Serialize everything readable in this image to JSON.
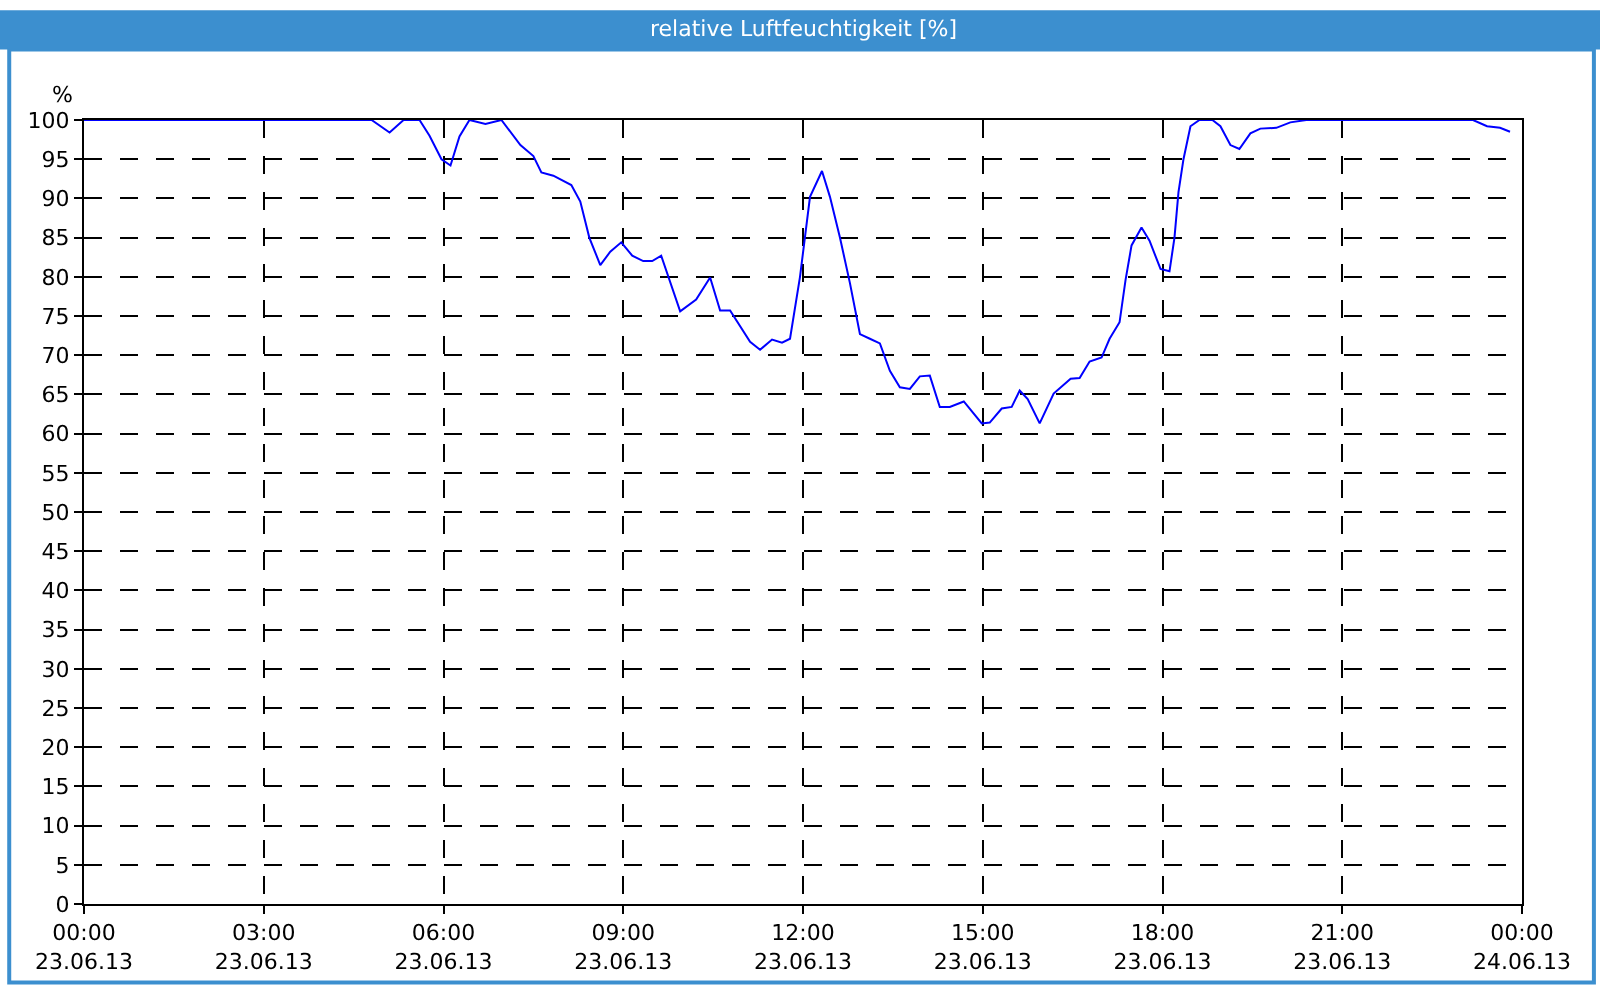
{
  "chart_data": {
    "type": "line",
    "title": "relative Luftfeuchtigkeit [%]",
    "ylabel": "%",
    "x": [
      "--06-23T00:00",
      "--06-23T04:48",
      "--06-23T05:06",
      "--06-23T05:20",
      "--06-23T05:36",
      "--06-23T05:46",
      "--06-23T05:58",
      "--06-23T06:07",
      "--06-23T06:16",
      "--06-23T06:26",
      "--06-23T06:42",
      "--06-23T06:58",
      "--06-23T07:17",
      "--06-23T07:30",
      "--06-23T07:38",
      "--06-23T07:50",
      "--06-23T08:08",
      "--06-23T08:17",
      "--06-23T08:26",
      "--06-23T08:37",
      "--06-23T08:47",
      "--06-23T08:58",
      "--06-23T09:09",
      "--06-23T09:20",
      "--06-23T09:29",
      "--06-23T09:38",
      "--06-23T09:57",
      "--06-23T10:13",
      "--06-23T10:27",
      "--06-23T10:37",
      "--06-23T10:47",
      "--06-23T11:07",
      "--06-23T11:17",
      "--06-23T11:29",
      "--06-23T11:39",
      "--06-23T11:47",
      "--06-23T11:57",
      "--06-23T12:07",
      "--06-23T12:19",
      "--06-23T12:27",
      "--06-23T12:37",
      "--06-23T12:47",
      "--06-23T12:57",
      "--06-23T13:07",
      "--06-23T13:17",
      "--06-23T13:27",
      "--06-23T13:37",
      "--06-23T13:47",
      "--06-23T13:57",
      "--06-23T14:07",
      "--06-23T14:17",
      "--06-23T14:27",
      "--06-23T14:41",
      "--06-23T14:59",
      "--06-23T15:07",
      "--06-23T15:19",
      "--06-23T15:29",
      "--06-23T15:37",
      "--06-23T15:45",
      "--06-23T15:57",
      "--06-23T16:11",
      "--06-23T16:28",
      "--06-23T16:37",
      "--06-23T16:47",
      "--06-23T16:59",
      "--06-23T17:07",
      "--06-23T17:17",
      "--06-23T17:23",
      "--06-23T17:29",
      "--06-23T17:39",
      "--06-23T17:47",
      "--06-23T17:58",
      "--06-23T18:07",
      "--06-23T18:12",
      "--06-23T18:16",
      "--06-23T18:21",
      "--06-23T18:28",
      "--06-23T18:37",
      "--06-23T18:50",
      "--06-23T18:58",
      "--06-23T19:08",
      "--06-23T19:17",
      "--06-23T19:28",
      "--06-23T19:38",
      "--06-23T19:54",
      "--06-23T20:08",
      "--06-23T20:24",
      "--06-23T23:11",
      "--06-23T23:25",
      "--06-23T23:38",
      "--06-23T23:48"
    ],
    "series": [
      {
        "color": "#0000ff",
        "values": [
          100,
          100,
          98.4,
          100,
          100,
          98,
          95,
          94.2,
          97.9,
          100,
          99.5,
          100,
          96.8,
          95.4,
          93.3,
          92.9,
          91.7,
          89.6,
          85,
          81.5,
          83.2,
          84.4,
          82.7,
          82,
          82,
          82.7,
          75.6,
          77.1,
          79.9,
          75.7,
          75.7,
          71.7,
          70.7,
          72,
          71.6,
          72.1,
          80,
          90.2,
          93.5,
          90.2,
          85,
          79.2,
          72.7,
          72.1,
          71.5,
          68,
          65.9,
          65.7,
          67.3,
          67.4,
          63.4,
          63.4,
          64.1,
          61.3,
          61.4,
          63.2,
          63.4,
          65.5,
          64.4,
          61.3,
          65.1,
          67,
          67.1,
          69.2,
          69.7,
          72.1,
          74.2,
          79.6,
          84,
          86.3,
          84.6,
          81,
          80.7,
          85,
          90.8,
          95,
          99.2,
          100,
          100,
          99.2,
          96.8,
          96.3,
          98.3,
          98.9,
          99,
          99.7,
          100,
          100,
          99.2,
          99,
          98.5
        ]
      }
    ],
    "xlim": [
      "--06-23T00:00",
      "--06-24T00:00"
    ],
    "ylim": [
      0,
      100
    ],
    "xticks": [
      {
        "value": "--06-23T00:00",
        "label": "00:00\n23.06.13"
      },
      {
        "value": "--06-23T03:00",
        "label": "03:00\n23.06.13"
      },
      {
        "value": "--06-23T06:00",
        "label": "06:00\n23.06.13"
      },
      {
        "value": "--06-23T09:00",
        "label": "09:00\n23.06.13"
      },
      {
        "value": "--06-23T12:00",
        "label": "12:00\n23.06.13"
      },
      {
        "value": "--06-23T15:00",
        "label": "15:00\n23.06.13"
      },
      {
        "value": "--06-23T18:00",
        "label": "18:00\n23.06.13"
      },
      {
        "value": "--06-23T21:00",
        "label": "21:00\n23.06.13"
      },
      {
        "value": "--06-24T00:00",
        "label": "00:00\n24.06.13"
      }
    ],
    "yticks": [
      0,
      5,
      10,
      15,
      20,
      25,
      30,
      35,
      40,
      45,
      50,
      55,
      60,
      65,
      70,
      75,
      80,
      85,
      90,
      95,
      100
    ],
    "grid": true,
    "marker": "none",
    "line_style": "solid"
  }
}
